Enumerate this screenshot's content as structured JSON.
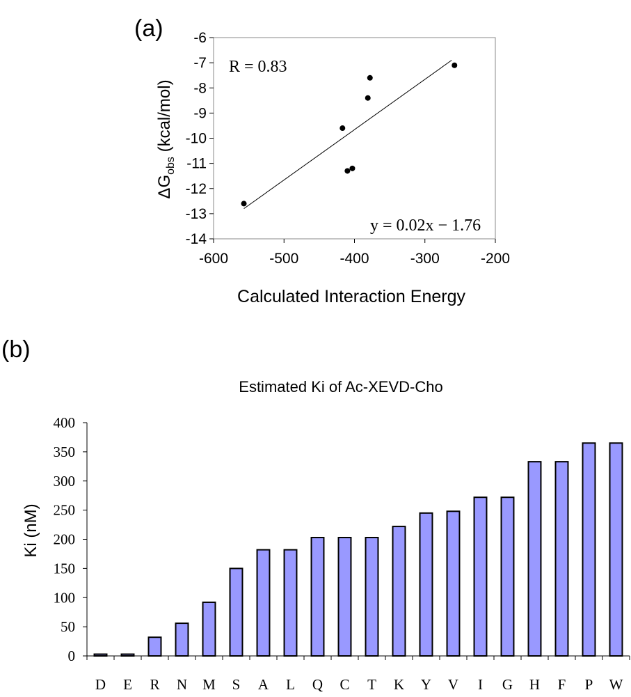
{
  "chart_data": [
    {
      "panel_label": "(a)",
      "type": "scatter",
      "xlabel": "Calculated Interaction Energy",
      "ylabel_delta": "Δ",
      "ylabel_main": "G",
      "ylabel_sub": "obs",
      "ylabel_unit": " (kcal/mol)",
      "xlim": [
        -600,
        -200
      ],
      "ylim": [
        -14,
        -6
      ],
      "xticks": [
        -600,
        -500,
        -400,
        -300,
        -200
      ],
      "yticks": [
        -6,
        -7,
        -8,
        -9,
        -10,
        -11,
        -12,
        -13,
        -14
      ],
      "x_tick_labels": [
        "-600",
        "-500",
        "-400",
        "-300",
        "-200"
      ],
      "y_tick_labels": [
        "-6",
        "-7",
        "-8",
        "-9",
        "-10",
        "-11",
        "-12",
        "-13",
        "-14"
      ],
      "points": [
        {
          "x": -557,
          "y": -12.6
        },
        {
          "x": -417,
          "y": -9.6
        },
        {
          "x": -410,
          "y": -11.3
        },
        {
          "x": -403,
          "y": -11.2
        },
        {
          "x": -381,
          "y": -8.4
        },
        {
          "x": -378,
          "y": -7.6
        },
        {
          "x": -258,
          "y": -7.1
        }
      ],
      "trendline": {
        "x": [
          -557,
          -262
        ],
        "y": [
          -12.8,
          -6.9
        ]
      },
      "annotation_r": "R = 0.83",
      "annotation_eq": "y = 0.02x − 1.76",
      "grid": false,
      "legend": "none"
    },
    {
      "panel_label": "(b)",
      "type": "bar",
      "title": "Estimated Ki of Ac-XEVD-Cho",
      "ylabel": "Ki (nM)",
      "xlabel": "",
      "ylim": [
        0,
        400
      ],
      "yticks": [
        0,
        50,
        100,
        150,
        200,
        250,
        300,
        350,
        400
      ],
      "y_tick_labels": [
        "0",
        "50",
        "100",
        "150",
        "200",
        "250",
        "300",
        "350",
        "400"
      ],
      "categories": [
        "D",
        "E",
        "R",
        "N",
        "M",
        "S",
        "A",
        "L",
        "Q",
        "C",
        "T",
        "K",
        "Y",
        "V",
        "I",
        "G",
        "H",
        "F",
        "P",
        "W"
      ],
      "values": [
        3,
        3,
        32,
        56,
        92,
        150,
        182,
        182,
        203,
        203,
        203,
        222,
        245,
        248,
        272,
        272,
        333,
        333,
        365,
        365
      ],
      "bar_color": "#9999ff",
      "grid": false,
      "legend": "none"
    }
  ]
}
